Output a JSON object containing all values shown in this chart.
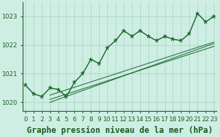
{
  "title": "Graphe pression niveau de la mer (hPa)",
  "hours": [
    0,
    1,
    2,
    3,
    4,
    5,
    6,
    7,
    8,
    9,
    10,
    11,
    12,
    13,
    14,
    15,
    16,
    17,
    18,
    19,
    20,
    21,
    22,
    23
  ],
  "pressure": [
    1020.6,
    1020.3,
    1020.2,
    1020.5,
    1020.45,
    1020.2,
    1020.7,
    1021.0,
    1021.5,
    1021.35,
    1021.9,
    1022.15,
    1022.5,
    1022.3,
    1022.5,
    1022.3,
    1022.15,
    1022.3,
    1022.2,
    1022.15,
    1022.4,
    1023.1,
    1022.8,
    1023.0
  ],
  "trend_lines": [
    [
      1020.0,
      1022.05
    ],
    [
      1020.1,
      1021.95
    ],
    [
      1020.25,
      1022.1
    ]
  ],
  "ylim": [
    1019.7,
    1023.5
  ],
  "xlim": [
    -0.3,
    23.3
  ],
  "bg_color": "#ceeee4",
  "plot_bg_color": "#ceeee4",
  "line_color": "#1a6b2a",
  "marker_color": "#1a6b2a",
  "grid_color": "#a8cfc0",
  "tick_label_color": "#1a5c20",
  "title_color": "#1a5c20",
  "yticks": [
    1020,
    1021,
    1022,
    1023
  ],
  "title_fontsize": 8.5,
  "tick_fontsize": 6.5
}
